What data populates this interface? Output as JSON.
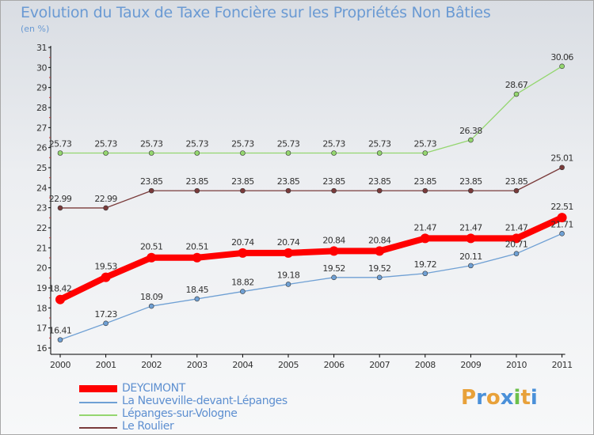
{
  "chart_data": {
    "type": "line",
    "title": "Evolution du Taux de Taxe Foncière sur les Propriétés Non Bâties",
    "subtitle": "(en %)",
    "x": [
      "2000",
      "2001",
      "2002",
      "2003",
      "2004",
      "2005",
      "2006",
      "2007",
      "2008",
      "2009",
      "2010",
      "2011"
    ],
    "ylim": [
      16,
      31
    ],
    "yticks": [
      "16",
      "17",
      "18",
      "19",
      "20",
      "21",
      "22",
      "23",
      "24",
      "25",
      "26",
      "27",
      "28",
      "29",
      "30",
      "31"
    ],
    "grid": false,
    "legend_position": "bottom-left",
    "series": [
      {
        "name": "DEYCIMONT",
        "color": "#ff0000",
        "values": [
          18.42,
          19.53,
          20.51,
          20.51,
          20.74,
          20.74,
          20.84,
          20.84,
          21.47,
          21.47,
          21.47,
          22.51
        ],
        "labels": [
          "18.42",
          "19.53",
          "20.51",
          "20.51",
          "20.74",
          "20.74",
          "20.84",
          "20.84",
          "21.47",
          "21.47",
          "21.47",
          "22.51"
        ]
      },
      {
        "name": "La Neuveville-devant-Lépanges",
        "color": "#6fa0d4",
        "values": [
          16.41,
          17.23,
          18.09,
          18.45,
          18.82,
          19.18,
          19.52,
          19.52,
          19.72,
          20.11,
          20.71,
          21.71
        ],
        "labels": [
          "16.41",
          "17.23",
          "18.09",
          "18.45",
          "18.82",
          "19.18",
          "19.52",
          "19.52",
          "19.72",
          "20.11",
          "20.71",
          "21.71"
        ]
      },
      {
        "name": "Lépanges-sur-Vologne",
        "color": "#94d66f",
        "values": [
          25.73,
          25.73,
          25.73,
          25.73,
          25.73,
          25.73,
          25.73,
          25.73,
          25.73,
          26.38,
          28.67,
          30.06
        ],
        "labels": [
          "25.73",
          "25.73",
          "25.73",
          "25.73",
          "25.73",
          "25.73",
          "25.73",
          "25.73",
          "25.73",
          "26.38",
          "28.67",
          "30.06"
        ]
      },
      {
        "name": "Le Roulier",
        "color": "#7a3b3b",
        "values": [
          22.99,
          22.99,
          23.85,
          23.85,
          23.85,
          23.85,
          23.85,
          23.85,
          23.85,
          23.85,
          23.85,
          25.01
        ],
        "labels": [
          "22.99",
          "22.99",
          "23.85",
          "23.85",
          "23.85",
          "23.85",
          "23.85",
          "23.85",
          "23.85",
          "23.85",
          "23.85",
          "25.01"
        ]
      }
    ]
  },
  "legend": {
    "items": [
      "DEYCIMONT",
      "La Neuveville-devant-Lépanges",
      "Lépanges-sur-Vologne",
      "Le Roulier"
    ]
  },
  "logo": {
    "letters": [
      "P",
      "r",
      "o",
      "x",
      "i",
      "t",
      "i"
    ],
    "colors": [
      "#e8a13a",
      "#4a90d9",
      "#e8a13a",
      "#4a90d9",
      "#6cc04a",
      "#e8a13a",
      "#4a90d9"
    ]
  }
}
